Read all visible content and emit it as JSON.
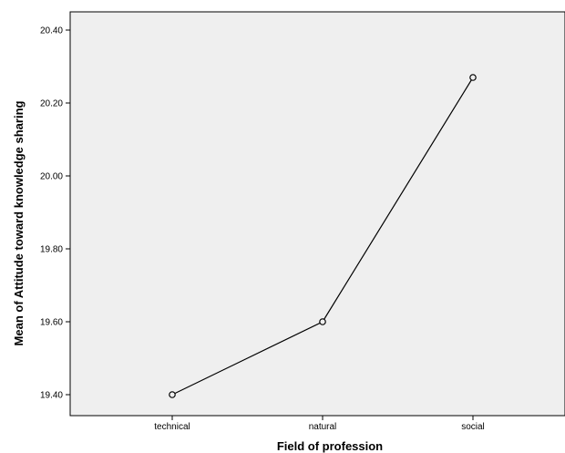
{
  "chart_data": {
    "type": "line",
    "categories": [
      "technical",
      "natural",
      "social"
    ],
    "values": [
      19.4,
      19.6,
      20.27
    ],
    "xlabel": "Field of profession",
    "ylabel": "Mean of Attitude toward knowledge sharing",
    "ylim": [
      19.355,
      20.42
    ],
    "yticks": [
      "19.40",
      "19.60",
      "19.80",
      "20.00",
      "20.20",
      "20.40"
    ],
    "grid": false,
    "marker": "open-circle",
    "colors": {
      "plot_background": "#efefef",
      "line": "#000000"
    }
  }
}
